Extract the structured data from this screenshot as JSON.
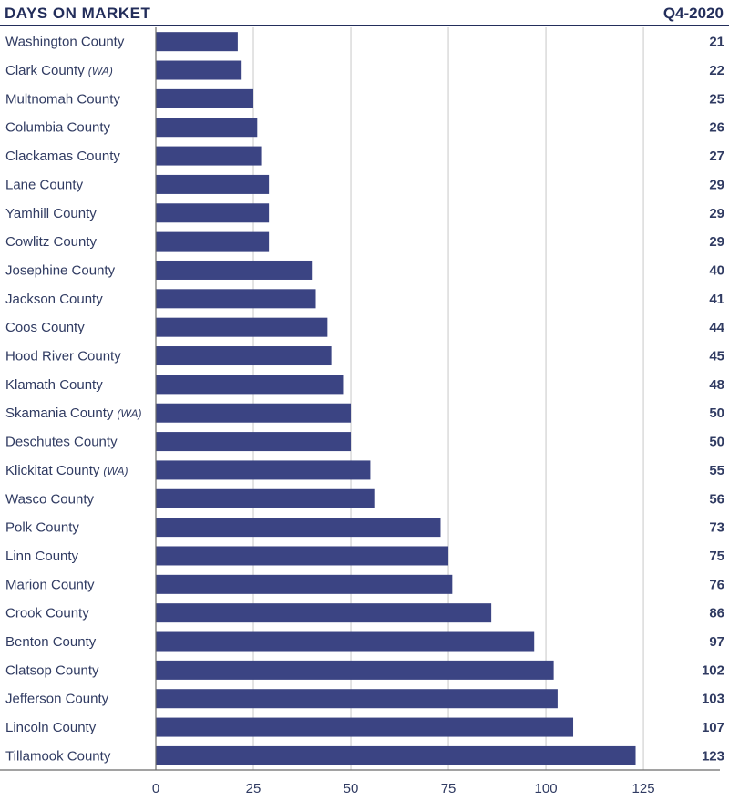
{
  "header": {
    "title": "DAYS ON MARKET",
    "period": "Q4-2020"
  },
  "colors": {
    "bar": "#3b4483",
    "text": "#303b62",
    "rule": "#232e5b",
    "grid": "#c8c8c8",
    "axis": "#6b6b6b"
  },
  "chart_data": {
    "type": "bar",
    "orientation": "horizontal",
    "title": "DAYS ON MARKET",
    "categories": [
      {
        "name": "Washington County",
        "qualifier": ""
      },
      {
        "name": "Clark County",
        "qualifier": "(WA)"
      },
      {
        "name": "Multnomah County",
        "qualifier": ""
      },
      {
        "name": "Columbia County",
        "qualifier": ""
      },
      {
        "name": "Clackamas County",
        "qualifier": ""
      },
      {
        "name": "Lane County",
        "qualifier": ""
      },
      {
        "name": "Yamhill County",
        "qualifier": ""
      },
      {
        "name": "Cowlitz County",
        "qualifier": ""
      },
      {
        "name": "Josephine County",
        "qualifier": ""
      },
      {
        "name": "Jackson County",
        "qualifier": ""
      },
      {
        "name": "Coos County",
        "qualifier": ""
      },
      {
        "name": "Hood River County",
        "qualifier": ""
      },
      {
        "name": "Klamath County",
        "qualifier": ""
      },
      {
        "name": "Skamania County",
        "qualifier": "(WA)"
      },
      {
        "name": "Deschutes County",
        "qualifier": ""
      },
      {
        "name": "Klickitat County",
        "qualifier": "(WA)"
      },
      {
        "name": "Wasco County",
        "qualifier": ""
      },
      {
        "name": "Polk County",
        "qualifier": ""
      },
      {
        "name": "Linn County",
        "qualifier": ""
      },
      {
        "name": "Marion County",
        "qualifier": ""
      },
      {
        "name": "Crook County",
        "qualifier": ""
      },
      {
        "name": "Benton County",
        "qualifier": ""
      },
      {
        "name": "Clatsop County",
        "qualifier": ""
      },
      {
        "name": "Jefferson County",
        "qualifier": ""
      },
      {
        "name": "Lincoln County",
        "qualifier": ""
      },
      {
        "name": "Tillamook County",
        "qualifier": ""
      }
    ],
    "values": [
      21,
      22,
      25,
      26,
      27,
      29,
      29,
      29,
      40,
      41,
      44,
      45,
      48,
      50,
      50,
      55,
      56,
      73,
      75,
      76,
      86,
      97,
      102,
      103,
      107,
      123
    ],
    "xlim": [
      0,
      139
    ],
    "xticks": [
      0,
      25,
      50,
      75,
      100,
      125
    ],
    "grid": true,
    "legend": "none"
  }
}
